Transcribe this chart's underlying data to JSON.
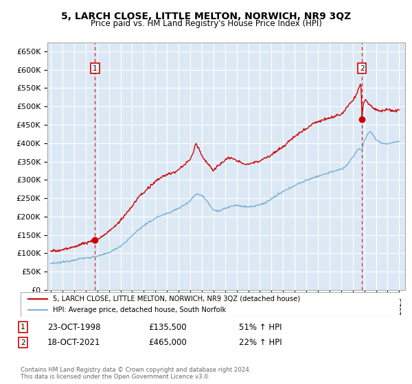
{
  "title": "5, LARCH CLOSE, LITTLE MELTON, NORWICH, NR9 3QZ",
  "subtitle": "Price paid vs. HM Land Registry's House Price Index (HPI)",
  "ylim": [
    0,
    675000
  ],
  "yticks": [
    0,
    50000,
    100000,
    150000,
    200000,
    250000,
    300000,
    350000,
    400000,
    450000,
    500000,
    550000,
    600000,
    650000
  ],
  "ytick_labels": [
    "£0",
    "£50K",
    "£100K",
    "£150K",
    "£200K",
    "£250K",
    "£300K",
    "£350K",
    "£400K",
    "£450K",
    "£500K",
    "£550K",
    "£600K",
    "£650K"
  ],
  "xlim_start": 1994.7,
  "xlim_end": 2025.5,
  "bg_color": "#dce9f5",
  "grid_color": "#ffffff",
  "red_color": "#cc0000",
  "blue_color": "#7ab0d4",
  "sale1_x": 1998.81,
  "sale1_y": 135500,
  "sale1_label": "1",
  "sale1_date": "23-OCT-1998",
  "sale1_price": "£135,500",
  "sale1_pct": "51% ↑ HPI",
  "sale2_x": 2021.8,
  "sale2_y": 465000,
  "sale2_label": "2",
  "sale2_date": "18-OCT-2021",
  "sale2_price": "£465,000",
  "sale2_pct": "22% ↑ HPI",
  "legend_line1": "5, LARCH CLOSE, LITTLE MELTON, NORWICH, NR9 3QZ (detached house)",
  "legend_line2": "HPI: Average price, detached house, South Norfolk",
  "footer": "Contains HM Land Registry data © Crown copyright and database right 2024.\nThis data is licensed under the Open Government Licence v3.0."
}
